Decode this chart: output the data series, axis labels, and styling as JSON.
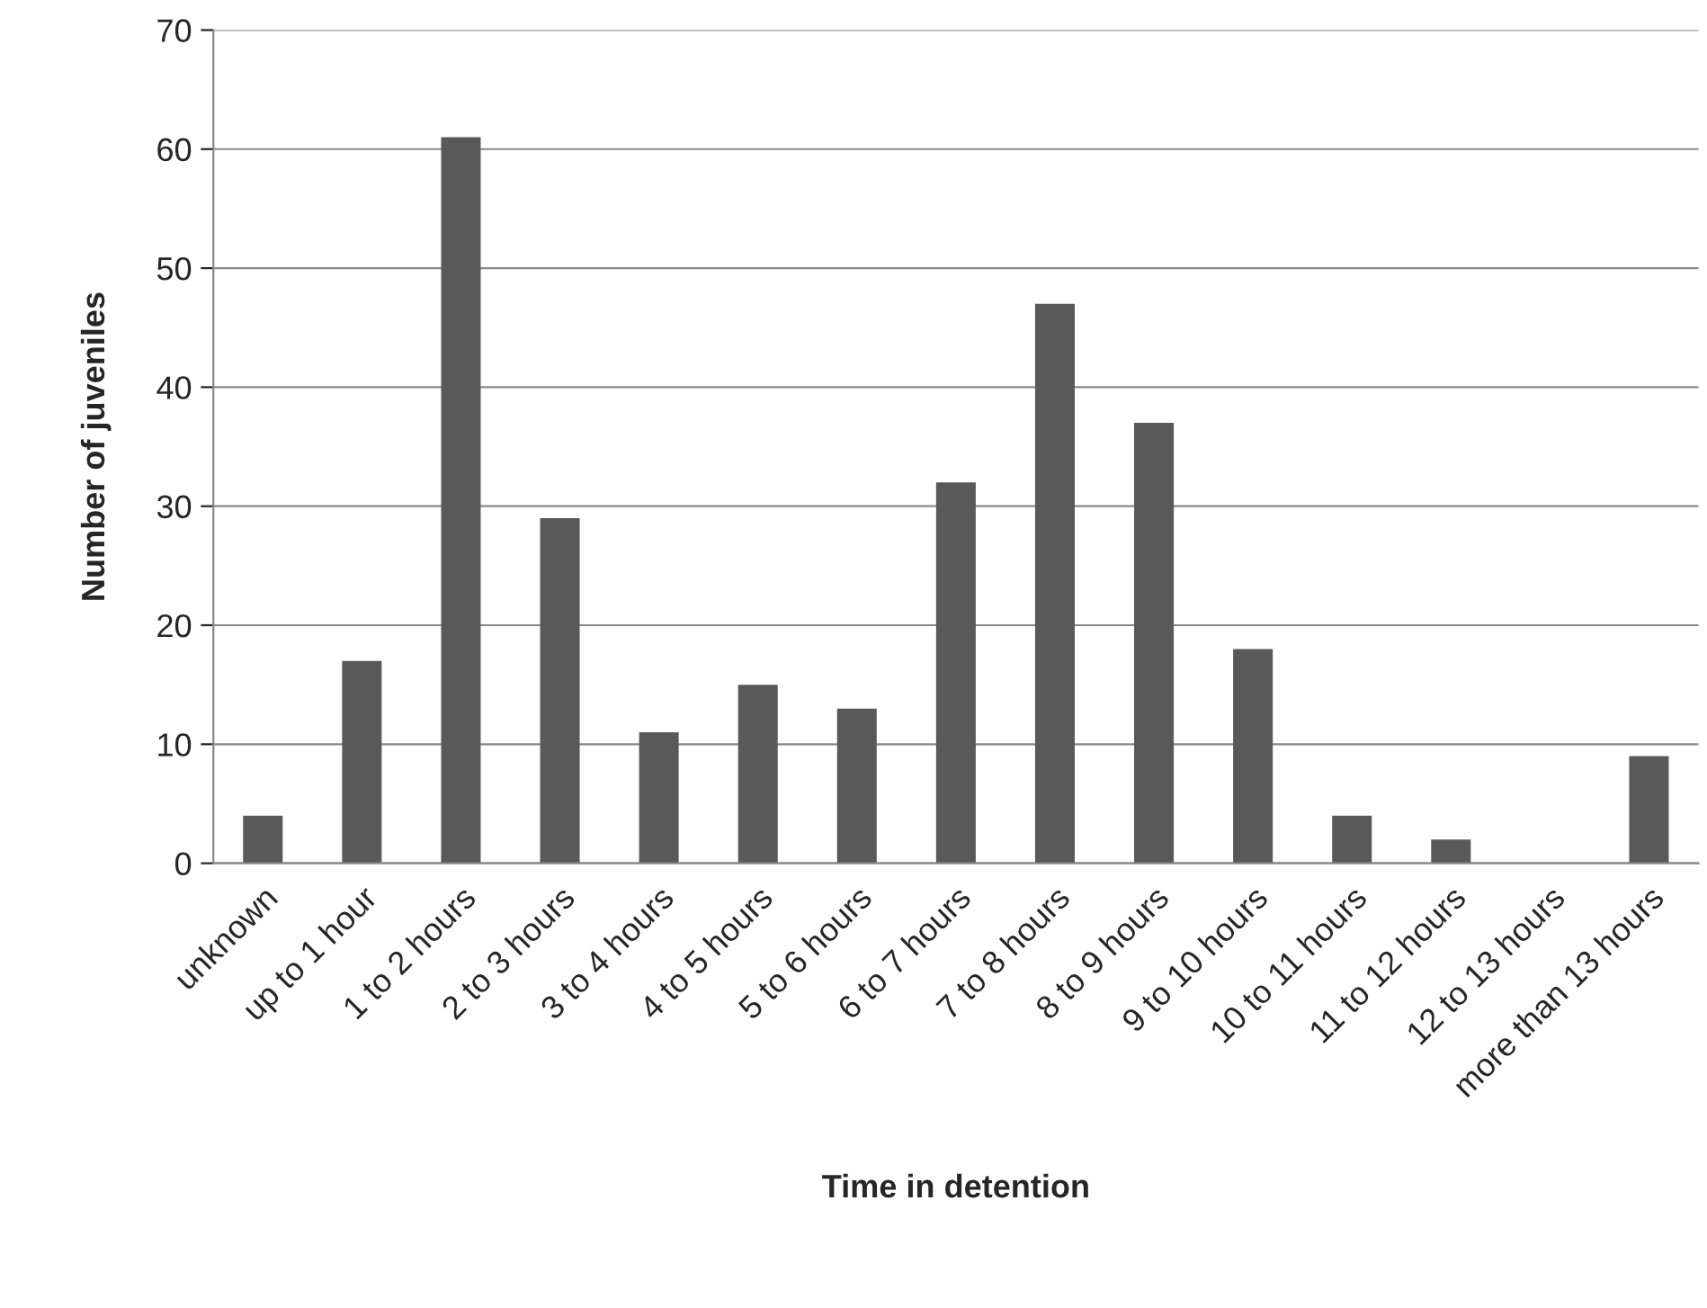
{
  "chart_data": {
    "type": "bar",
    "xlabel": "Time in detention",
    "ylabel": "Number of juveniles",
    "categories": [
      "unknown",
      "up to 1 hour",
      "1 to 2 hours",
      "2 to 3 hours",
      "3 to 4 hours",
      "4 to 5 hours",
      "5 to 6 hours",
      "6 to 7 hours",
      "7 to 8 hours",
      "8 to 9 hours",
      "9 to 10 hours",
      "10 to 11 hours",
      "11 to 12 hours",
      "12 to 13 hours",
      "more than 13 hours"
    ],
    "values": [
      4,
      17,
      61,
      29,
      11,
      15,
      13,
      32,
      47,
      37,
      18,
      4,
      2,
      0,
      9
    ],
    "color": "#595959",
    "ylim": [
      0,
      70
    ],
    "yticks": [
      0,
      10,
      20,
      30,
      40,
      50,
      60,
      70
    ],
    "grid": "y",
    "legend": false
  }
}
